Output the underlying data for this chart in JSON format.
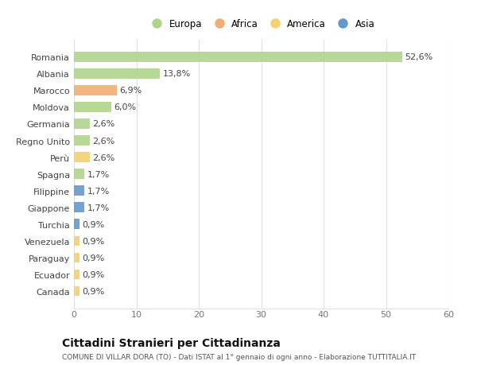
{
  "countries": [
    "Romania",
    "Albania",
    "Marocco",
    "Moldova",
    "Germania",
    "Regno Unito",
    "Perù",
    "Spagna",
    "Filippine",
    "Giappone",
    "Turchia",
    "Venezuela",
    "Paraguay",
    "Ecuador",
    "Canada"
  ],
  "values": [
    52.6,
    13.8,
    6.9,
    6.0,
    2.6,
    2.6,
    2.6,
    1.7,
    1.7,
    1.7,
    0.9,
    0.9,
    0.9,
    0.9,
    0.9
  ],
  "labels": [
    "52,6%",
    "13,8%",
    "6,9%",
    "6,0%",
    "2,6%",
    "2,6%",
    "2,6%",
    "1,7%",
    "1,7%",
    "1,7%",
    "0,9%",
    "0,9%",
    "0,9%",
    "0,9%",
    "0,9%"
  ],
  "continents": [
    "Europa",
    "Europa",
    "Africa",
    "Europa",
    "Europa",
    "Europa",
    "America",
    "Europa",
    "Asia",
    "Asia",
    "Asia",
    "America",
    "America",
    "America",
    "America"
  ],
  "colors": {
    "Europa": "#b0d48c",
    "Africa": "#f2ae72",
    "America": "#f5d06e",
    "Asia": "#6399cc"
  },
  "legend_order": [
    "Europa",
    "Africa",
    "America",
    "Asia"
  ],
  "background_color": "#ffffff",
  "grid_color": "#e0e0e0",
  "title": "Cittadini Stranieri per Cittadinanza",
  "subtitle": "COMUNE DI VILLAR DORA (TO) - Dati ISTAT al 1° gennaio di ogni anno - Elaborazione TUTTITALIA.IT",
  "xlim": [
    0,
    60
  ],
  "xticks": [
    0,
    10,
    20,
    30,
    40,
    50,
    60
  ],
  "bar_height": 0.6,
  "label_fontsize": 8,
  "ytick_fontsize": 8,
  "xtick_fontsize": 8,
  "title_fontsize": 10,
  "subtitle_fontsize": 6.5,
  "legend_fontsize": 8.5
}
